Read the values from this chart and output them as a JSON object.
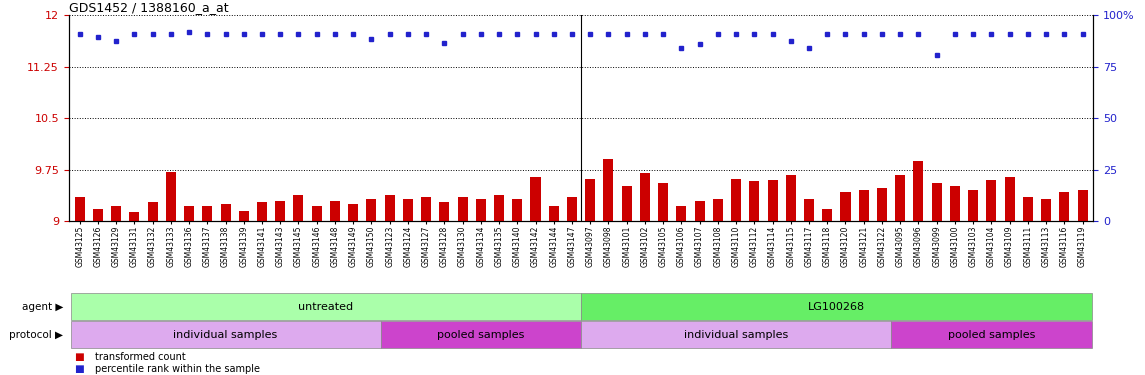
{
  "title": "GDS1452 / 1388160_a_at",
  "xlabels": [
    "GSM43125",
    "GSM43126",
    "GSM43129",
    "GSM43131",
    "GSM43132",
    "GSM43133",
    "GSM43136",
    "GSM43137",
    "GSM43138",
    "GSM43139",
    "GSM43141",
    "GSM43143",
    "GSM43145",
    "GSM43146",
    "GSM43148",
    "GSM43149",
    "GSM43150",
    "GSM43123",
    "GSM43124",
    "GSM43127",
    "GSM43128",
    "GSM43130",
    "GSM43134",
    "GSM43135",
    "GSM43140",
    "GSM43142",
    "GSM43144",
    "GSM43147",
    "GSM43097",
    "GSM43098",
    "GSM43101",
    "GSM43102",
    "GSM43105",
    "GSM43106",
    "GSM43107",
    "GSM43108",
    "GSM43110",
    "GSM43112",
    "GSM43114",
    "GSM43115",
    "GSM43117",
    "GSM43118",
    "GSM43120",
    "GSM43121",
    "GSM43122",
    "GSM43095",
    "GSM43096",
    "GSM43099",
    "GSM43100",
    "GSM43103",
    "GSM43104",
    "GSM43109",
    "GSM43111",
    "GSM43113",
    "GSM43116",
    "GSM43119"
  ],
  "bar_values": [
    9.35,
    9.18,
    9.22,
    9.13,
    9.28,
    9.72,
    9.22,
    9.22,
    9.25,
    9.15,
    9.28,
    9.3,
    9.38,
    9.22,
    9.3,
    9.25,
    9.32,
    9.38,
    9.32,
    9.35,
    9.28,
    9.35,
    9.32,
    9.38,
    9.32,
    9.65,
    9.22,
    9.35,
    9.62,
    9.9,
    9.52,
    9.7,
    9.55,
    9.22,
    9.3,
    9.32,
    9.62,
    9.58,
    9.6,
    9.68,
    9.32,
    9.18,
    9.42,
    9.45,
    9.48,
    9.68,
    9.88,
    9.55,
    9.52,
    9.45,
    9.6,
    9.65,
    9.35,
    9.32,
    9.42,
    9.45
  ],
  "percentile_values": [
    11.72,
    11.68,
    11.62,
    11.72,
    11.72,
    11.72,
    11.75,
    11.72,
    11.72,
    11.72,
    11.72,
    11.72,
    11.72,
    11.72,
    11.72,
    11.72,
    11.65,
    11.72,
    11.72,
    11.72,
    11.6,
    11.72,
    11.72,
    11.72,
    11.72,
    11.72,
    11.72,
    11.72,
    11.72,
    11.72,
    11.72,
    11.72,
    11.72,
    11.52,
    11.58,
    11.72,
    11.72,
    11.72,
    11.72,
    11.62,
    11.52,
    11.72,
    11.72,
    11.72,
    11.72,
    11.72,
    11.72,
    11.42,
    11.72,
    11.72,
    11.72,
    11.72,
    11.72,
    11.72,
    11.72,
    11.72
  ],
  "bar_color": "#cc0000",
  "dot_color": "#2222cc",
  "ylim_left": [
    9.0,
    12.0
  ],
  "ylim_right": [
    0,
    100
  ],
  "yticks_left": [
    9.0,
    9.75,
    10.5,
    11.25,
    12.0
  ],
  "yticks_right": [
    0,
    25,
    50,
    75,
    100
  ],
  "ytick_labels_left": [
    "9",
    "9.75",
    "10.5",
    "11.25",
    "12"
  ],
  "ytick_labels_right": [
    "0",
    "25",
    "50",
    "75",
    "100%"
  ],
  "agent_groups": [
    {
      "label": "untreated",
      "start": 0,
      "end": 27,
      "color": "#aaffaa"
    },
    {
      "label": "LG100268",
      "start": 28,
      "end": 55,
      "color": "#66ee66"
    }
  ],
  "protocol_groups": [
    {
      "label": "individual samples",
      "start": 0,
      "end": 16,
      "color": "#ddaaee"
    },
    {
      "label": "pooled samples",
      "start": 17,
      "end": 27,
      "color": "#cc44cc"
    },
    {
      "label": "individual samples",
      "start": 28,
      "end": 44,
      "color": "#ddaaee"
    },
    {
      "label": "pooled samples",
      "start": 45,
      "end": 55,
      "color": "#cc44cc"
    }
  ],
  "bg_color": "#ffffff",
  "plot_bg_color": "#ffffff",
  "label_agent": "agent",
  "label_protocol": "protocol"
}
